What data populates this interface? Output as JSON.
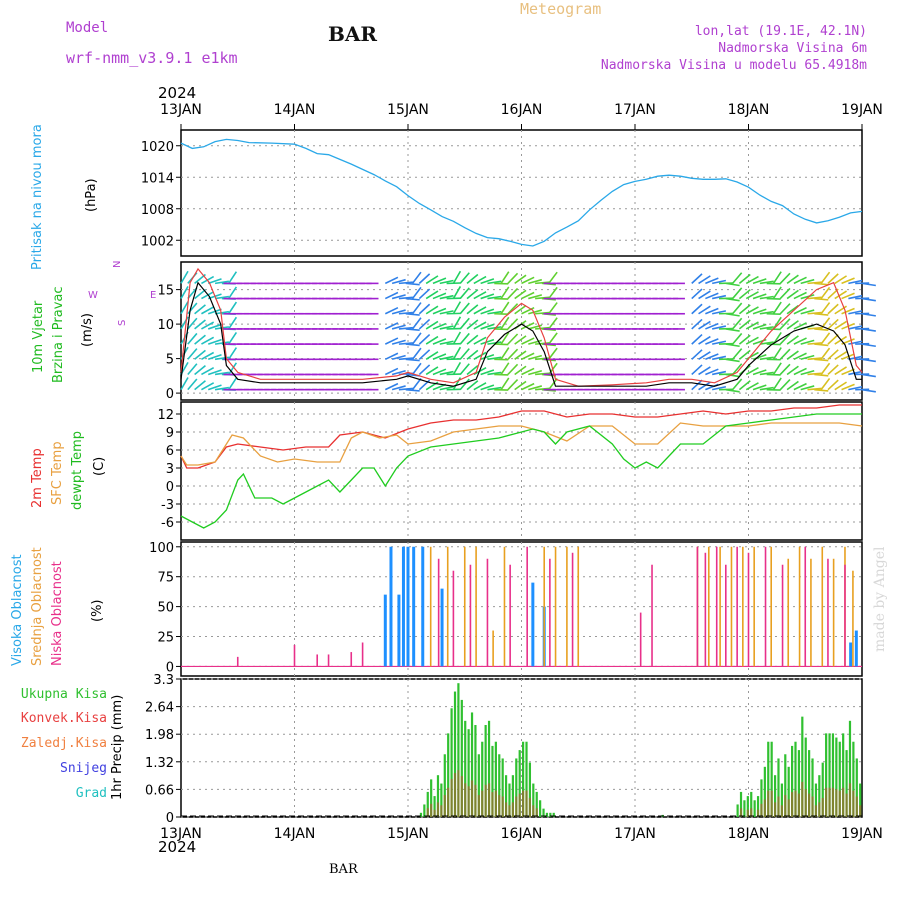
{
  "header": {
    "model_label": "Model",
    "model_name": "wrf-nmm_v3.9.1 e1km",
    "station": "BAR",
    "title": "Meteogram",
    "lonlat": "lon,lat (19.1E, 42.1N)",
    "elev1": "Nadmorska Visina 6m",
    "elev2": "Nadmorska Visina u modelu 65.4918m",
    "year": "2024",
    "footer": "BAR",
    "credit": "made by Angel"
  },
  "colors": {
    "pressure": "#2aa8e8",
    "temp2m": "#e83030",
    "sfc": "#e8a040",
    "dew": "#20cc20",
    "grid": "#999999",
    "total": "#30c030",
    "conv": "#e84040",
    "snow": "#4040e0",
    "hail": "#20c0c0"
  },
  "chart_data": [
    {
      "type": "line",
      "panel": "pressure",
      "label_left": "Pritisak na nivou mora",
      "ylabel": "(hPa)",
      "x_ticks": [
        "13JAN",
        "14JAN",
        "15JAN",
        "16JAN",
        "17JAN",
        "18JAN",
        "19JAN"
      ],
      "ylim": [
        999,
        1023
      ],
      "yticks": [
        1002,
        1008,
        1014,
        1020
      ],
      "series": [
        {
          "x": [
            0,
            0.1,
            0.2,
            0.3,
            0.4,
            0.5,
            0.6,
            0.8,
            1.0,
            1.1,
            1.2,
            1.3,
            1.4,
            1.5,
            1.6,
            1.7,
            1.8,
            1.9,
            2.0,
            2.1,
            2.2,
            2.3,
            2.4,
            2.5,
            2.6,
            2.7,
            2.8,
            2.9,
            3.0,
            3.1,
            3.2,
            3.3,
            3.4,
            3.5,
            3.6,
            3.7,
            3.8,
            3.9,
            4.0,
            4.1,
            4.2,
            4.3,
            4.4,
            4.5,
            4.6,
            4.7,
            4.8,
            4.9,
            5.0,
            5.1,
            5.2,
            5.3,
            5.4,
            5.5,
            5.6,
            5.7,
            5.8,
            5.9,
            6.0
          ],
          "y": [
            1020.5,
            1019.5,
            1019.8,
            1020.8,
            1021.2,
            1021,
            1020.6,
            1020.5,
            1020.3,
            1019.5,
            1018.5,
            1018.3,
            1017.4,
            1016.5,
            1015.5,
            1014.5,
            1013.3,
            1012.2,
            1010.5,
            1009,
            1007.8,
            1006.5,
            1005.6,
            1004.4,
            1003.3,
            1002.5,
            1002.3,
            1001.8,
            1001.2,
            1000.9,
            1001.8,
            1003.4,
            1004.5,
            1005.7,
            1007.8,
            1009.6,
            1011.3,
            1012.6,
            1013.2,
            1013.6,
            1014.2,
            1014.4,
            1014.2,
            1013.8,
            1013.6,
            1013.6,
            1013.7,
            1013.1,
            1012.1,
            1010.6,
            1009.4,
            1008.6,
            1007,
            1006,
            1005.3,
            1005.7,
            1006.4,
            1007.2,
            1007.5
          ]
        }
      ]
    },
    {
      "type": "line",
      "panel": "wind",
      "label_left_1": "10m Vjetar",
      "label_left_2": "Brzina i Pravac",
      "ylabel": "(m/s)",
      "compass": {
        "n": "N",
        "s": "S",
        "w": "W",
        "e": "E"
      },
      "ylim": [
        -1,
        19
      ],
      "yticks": [
        0,
        5,
        10,
        15
      ],
      "series": [
        {
          "name": "speed",
          "x": [
            0,
            0.08,
            0.15,
            0.25,
            0.35,
            0.4,
            0.5,
            0.7,
            1.0,
            1.3,
            1.6,
            1.9,
            2.0,
            2.2,
            2.4,
            2.6,
            2.7,
            2.85,
            3.0,
            3.1,
            3.2,
            3.3,
            3.5,
            3.8,
            4.1,
            4.3,
            4.5,
            4.7,
            4.9,
            5.0,
            5.2,
            5.4,
            5.6,
            5.75,
            5.85,
            5.95,
            6.0
          ],
          "y": [
            2,
            12,
            16,
            14,
            10,
            4,
            2,
            1.5,
            1.5,
            1.5,
            1.5,
            2,
            2.5,
            1.5,
            1,
            2,
            6,
            8.5,
            10,
            9,
            6,
            1,
            1,
            1,
            1,
            1.5,
            1.5,
            1,
            2,
            4,
            7,
            9,
            10,
            9,
            7,
            2,
            2
          ]
        },
        {
          "name": "gust",
          "x": [
            0,
            0.08,
            0.15,
            0.25,
            0.35,
            0.4,
            0.5,
            0.7,
            1.0,
            1.3,
            1.6,
            1.9,
            2.0,
            2.2,
            2.4,
            2.6,
            2.7,
            2.85,
            3.0,
            3.1,
            3.2,
            3.3,
            3.5,
            3.8,
            4.1,
            4.3,
            4.5,
            4.7,
            4.9,
            5.0,
            5.2,
            5.4,
            5.6,
            5.75,
            5.85,
            5.95,
            6.0
          ],
          "y": [
            3,
            16,
            18,
            16,
            12,
            5,
            3,
            2,
            2,
            2,
            2,
            2.5,
            3,
            2,
            1.5,
            3,
            8,
            11,
            13,
            12,
            8,
            2,
            1,
            1.2,
            1.5,
            2,
            2,
            1.5,
            3,
            5,
            9,
            12,
            15,
            16,
            12,
            4,
            3
          ]
        }
      ]
    },
    {
      "type": "line",
      "panel": "temperature",
      "label_left_1": "2m Temp",
      "label_left_2": "SFC Temp",
      "label_left_3": "dewpt Temp",
      "ylabel": "(C)",
      "ylim": [
        -9,
        14
      ],
      "yticks": [
        -6,
        -3,
        0,
        3,
        6,
        9,
        12
      ],
      "series": [
        {
          "name": "2m Temp",
          "x": [
            0,
            0.05,
            0.15,
            0.3,
            0.4,
            0.5,
            0.7,
            0.9,
            1.1,
            1.3,
            1.4,
            1.6,
            1.8,
            2.0,
            2.2,
            2.4,
            2.6,
            2.8,
            3.0,
            3.2,
            3.4,
            3.6,
            3.8,
            4.0,
            4.2,
            4.4,
            4.6,
            4.8,
            5.0,
            5.2,
            5.4,
            5.6,
            5.8,
            6.0
          ],
          "y": [
            5,
            3,
            3,
            4,
            6.5,
            7,
            6.5,
            6,
            6.5,
            6.5,
            8.5,
            9,
            8,
            9.5,
            10.5,
            11,
            11,
            11.5,
            12.5,
            12.5,
            11.5,
            12,
            12,
            11.5,
            11.5,
            12,
            12.5,
            12,
            12.5,
            12.5,
            13,
            13,
            13.5,
            13.5
          ]
        },
        {
          "name": "SFC Temp",
          "x": [
            0,
            0.05,
            0.15,
            0.3,
            0.45,
            0.55,
            0.7,
            0.85,
            1.0,
            1.2,
            1.4,
            1.5,
            1.6,
            1.75,
            1.9,
            2.0,
            2.2,
            2.4,
            2.6,
            2.8,
            3.0,
            3.2,
            3.4,
            3.6,
            3.8,
            4.0,
            4.2,
            4.4,
            4.6,
            4.8,
            5.0,
            5.2,
            5.4,
            5.6,
            5.8,
            6.0
          ],
          "y": [
            5,
            3.5,
            3.5,
            4,
            8.5,
            8,
            5,
            4,
            4.5,
            4,
            4,
            8,
            9,
            8,
            8.5,
            7,
            7.5,
            9,
            9.5,
            10,
            10,
            9,
            7.5,
            10,
            10,
            7,
            7,
            10.5,
            10,
            10,
            10,
            10.5,
            10.5,
            10.5,
            10.5,
            10
          ]
        },
        {
          "name": "dewpt Temp",
          "x": [
            0,
            0.1,
            0.2,
            0.3,
            0.4,
            0.5,
            0.55,
            0.65,
            0.8,
            0.9,
            1.0,
            1.1,
            1.3,
            1.4,
            1.5,
            1.6,
            1.7,
            1.8,
            1.9,
            2.0,
            2.2,
            2.4,
            2.6,
            2.8,
            3.0,
            3.1,
            3.2,
            3.3,
            3.4,
            3.6,
            3.8,
            3.9,
            4.0,
            4.1,
            4.2,
            4.3,
            4.4,
            4.6,
            4.8,
            5.0,
            5.2,
            5.4,
            5.6,
            5.8,
            6.0
          ],
          "y": [
            -5,
            -6,
            -7,
            -6,
            -4,
            1,
            2,
            -2,
            -2,
            -3,
            -2,
            -1,
            1,
            -1,
            1,
            3,
            3,
            0,
            3,
            5,
            6.5,
            7,
            7.5,
            8,
            9,
            9.5,
            9,
            7,
            9,
            10,
            7,
            4.5,
            3,
            4,
            3,
            5,
            7,
            7,
            10,
            10.5,
            11,
            11.5,
            12,
            12,
            12
          ]
        }
      ]
    },
    {
      "type": "bar",
      "panel": "clouds",
      "label_left_1": "Visoka Oblacnost",
      "label_left_2": "Srednja Oblacnost",
      "label_left_3": "Niska Oblacnost",
      "ylabel": "(%)",
      "ylim": [
        0,
        100
      ],
      "yticks": [
        0,
        25,
        50,
        75,
        100
      ],
      "series": [
        {
          "name": "high",
          "color": "#1e90ff",
          "x": [
            1.8,
            1.85,
            1.92,
            1.96,
            2.0,
            2.05,
            2.13,
            2.3,
            3.1,
            3.2,
            5.9,
            5.95
          ],
          "y": [
            60,
            100,
            60,
            100,
            100,
            100,
            100,
            65,
            70,
            50,
            20,
            30
          ]
        },
        {
          "name": "mid",
          "color": "#e8a020",
          "x": [
            2.2,
            2.35,
            2.5,
            2.6,
            2.75,
            2.85,
            3.2,
            3.3,
            3.4,
            3.5,
            4.55,
            4.65,
            4.75,
            4.85,
            4.95,
            5.05,
            5.2,
            5.35,
            5.45,
            5.55,
            5.65,
            5.75,
            5.85,
            5.92
          ],
          "y": [
            100,
            100,
            100,
            100,
            30,
            100,
            100,
            100,
            100,
            100,
            100,
            100,
            100,
            100,
            100,
            100,
            100,
            90,
            100,
            90,
            100,
            90,
            100,
            80
          ]
        },
        {
          "name": "low",
          "color": "#e8308a",
          "x": [
            0.5,
            1.0,
            1.2,
            1.3,
            1.5,
            1.6,
            2.27,
            2.4,
            2.55,
            2.7,
            2.9,
            3.05,
            3.25,
            3.45,
            4.05,
            4.15,
            4.55,
            4.62,
            4.72,
            4.8,
            4.9,
            5.0,
            5.15,
            5.3,
            5.5,
            5.7,
            5.85
          ],
          "y": [
            8,
            18,
            10,
            10,
            12,
            20,
            90,
            80,
            85,
            90,
            85,
            100,
            90,
            95,
            45,
            85,
            100,
            95,
            100,
            85,
            100,
            95,
            100,
            85,
            100,
            90,
            85
          ]
        }
      ]
    },
    {
      "type": "bar",
      "panel": "precip",
      "legend": [
        "Ukupna Kisa",
        "Konvek.Kisa",
        "Zaledj.Kisa",
        "Snijeg",
        "Grad"
      ],
      "ylabel": "1hr Precip (mm)",
      "ylim": [
        0,
        3.3
      ],
      "ytick_labels": [
        "0",
        "0.66",
        "1.32",
        "1.98",
        "2.64",
        "3.3"
      ],
      "x_ticks": [
        "13JAN",
        "14JAN",
        "15JAN",
        "16JAN",
        "17JAN",
        "18JAN",
        "19JAN"
      ],
      "total": [
        0,
        0,
        0,
        0,
        0,
        0,
        0,
        0,
        0,
        0,
        0,
        0,
        0,
        0,
        0,
        0,
        0,
        0,
        0,
        0,
        0,
        0,
        0,
        0,
        0,
        0,
        0,
        0,
        0,
        0,
        0,
        0,
        0,
        0,
        0,
        0,
        0,
        0,
        0,
        0,
        0,
        0,
        0,
        0,
        0,
        0,
        0,
        0,
        0,
        0,
        0,
        0,
        0,
        0,
        0,
        0,
        0,
        0,
        0,
        0,
        0,
        0,
        0,
        0,
        0,
        0,
        0,
        0,
        0,
        0,
        0.1,
        0.3,
        0.6,
        0.9,
        0.5,
        1.0,
        0.8,
        1.5,
        2.0,
        2.6,
        3.0,
        3.2,
        2.8,
        2.3,
        2.1,
        2.5,
        2.2,
        1.5,
        1.8,
        2.2,
        2.3,
        1.7,
        1.8,
        1.5,
        1.4,
        1.0,
        0.8,
        1.0,
        1.4,
        1.6,
        1.8,
        1.8,
        1.3,
        0.8,
        0.6,
        0.4,
        0.2,
        0.1,
        0.1,
        0.1,
        0,
        0,
        0,
        0,
        0,
        0,
        0,
        0,
        0,
        0,
        0,
        0,
        0,
        0,
        0,
        0,
        0,
        0,
        0,
        0,
        0,
        0,
        0,
        0,
        0,
        0,
        0,
        0,
        0,
        0,
        0,
        0.05,
        0,
        0,
        0,
        0,
        0,
        0,
        0,
        0,
        0,
        0,
        0,
        0,
        0,
        0,
        0,
        0,
        0,
        0,
        0,
        0,
        0,
        0.3,
        0.6,
        0.4,
        0.5,
        0.6,
        0.4,
        0.5,
        0.9,
        1.2,
        1.8,
        1.8,
        1.0,
        1.4,
        0.8,
        1.5,
        1.2,
        1.7,
        1.8,
        1.6,
        2.4,
        1.9,
        1.6,
        1.4,
        0.8,
        1.0,
        1.3,
        2.0,
        2.0,
        2.0,
        1.9,
        1.8,
        2.0,
        1.6,
        2.3,
        1.8,
        1.4,
        0.8
      ]
    }
  ]
}
